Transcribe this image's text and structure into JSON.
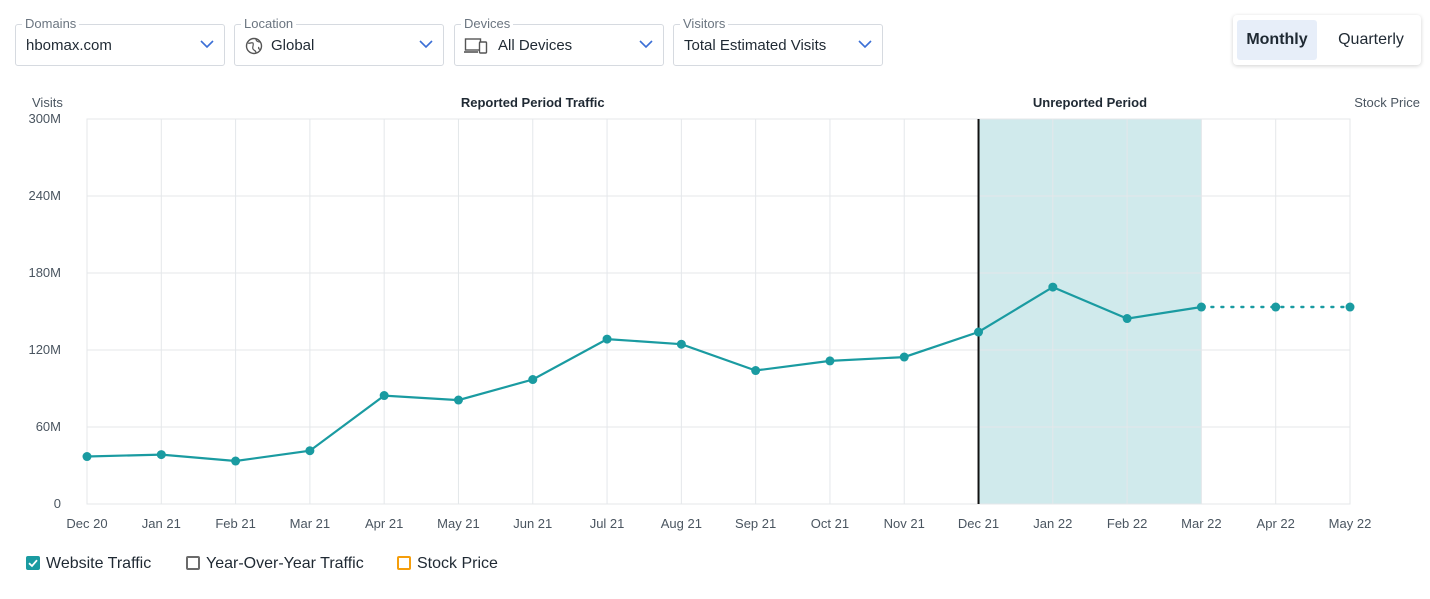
{
  "filters": {
    "domains": {
      "label": "Domains",
      "value": "hbomax.com"
    },
    "location": {
      "label": "Location",
      "value": "Global",
      "icon": "globe-icon"
    },
    "devices": {
      "label": "Devices",
      "value": "All Devices",
      "icon": "devices-icon"
    },
    "visitors": {
      "label": "Visitors",
      "value": "Total Estimated Visits"
    }
  },
  "period_toggle": {
    "monthly": "Monthly",
    "quarterly": "Quarterly",
    "selected": "Monthly"
  },
  "legend": {
    "website_traffic": {
      "label": "Website Traffic",
      "checked": true,
      "color": "#1a9ba1"
    },
    "yoy_traffic": {
      "label": "Year-Over-Year Traffic",
      "checked": false,
      "color": "#6b6b6b"
    },
    "stock_price": {
      "label": "Stock Price",
      "checked": false,
      "color": "#f59e0b"
    }
  },
  "chart_data": {
    "type": "line",
    "ylabel": "Visits",
    "y2label": "Stock Price",
    "ylim": [
      0,
      300000000
    ],
    "yticks": [
      0,
      60000000,
      120000000,
      180000000,
      240000000,
      300000000
    ],
    "ytick_labels": [
      "0",
      "60M",
      "120M",
      "180M",
      "240M",
      "300M"
    ],
    "categories": [
      "Dec 20",
      "Jan 21",
      "Feb 21",
      "Mar 21",
      "Apr 21",
      "May 21",
      "Jun 21",
      "Jul 21",
      "Aug 21",
      "Sep 21",
      "Oct 21",
      "Nov 21",
      "Dec 21",
      "Jan 22",
      "Feb 22",
      "Mar 22",
      "Apr 22",
      "May 22"
    ],
    "series": [
      {
        "name": "Website Traffic",
        "color": "#1a9ba1",
        "values": [
          37000000,
          38500000,
          33500000,
          41500000,
          84500000,
          81000000,
          97000000,
          128500000,
          124500000,
          104000000,
          111500000,
          114500000,
          134000000,
          169000000,
          144500000,
          153500000,
          153500000,
          153500000
        ],
        "projected_from_index": 15
      }
    ],
    "regions": {
      "reported": {
        "label": "Reported Period Traffic",
        "end_category": "Dec 21"
      },
      "unreported": {
        "label": "Unreported Period",
        "start_category": "Dec 21",
        "end_category": "Mar 22",
        "color": "#d0eaec"
      }
    },
    "grid": true
  }
}
